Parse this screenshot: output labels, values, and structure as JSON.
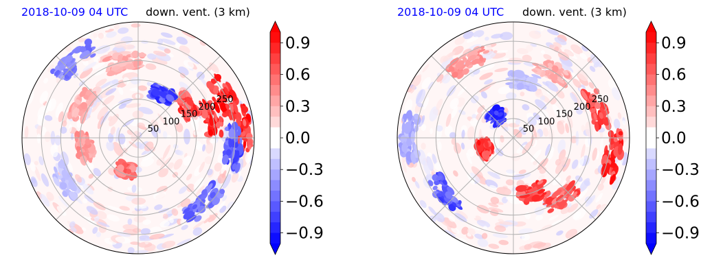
{
  "chart_data": [
    {
      "type": "heatmap",
      "projection": "polar",
      "title_left": "2018-10-09 04 UTC",
      "title_right": "down. vent. (3 km)",
      "radial_ticks": [
        "50",
        "100",
        "150",
        "200",
        "250"
      ],
      "radial_tick_values": [
        50,
        100,
        150,
        200,
        250
      ],
      "radial_max": 300,
      "angular_grid_step_deg": 45,
      "colorbar": {
        "ticks": [
          0.9,
          0.6,
          0.3,
          0.0,
          -0.3,
          -0.6,
          -0.9
        ],
        "tick_labels": [
          "0.9",
          "0.6",
          "0.3",
          "0.0",
          "−0.3",
          "−0.6",
          "−0.9"
        ],
        "range": [
          -1.0,
          1.0
        ],
        "extend": "both",
        "colormap": "bwr"
      },
      "features": [
        {
          "azimuth_deg": 65,
          "range": 250,
          "value": 1.0
        },
        {
          "azimuth_deg": 75,
          "range": 200,
          "value": 1.0
        },
        {
          "azimuth_deg": 55,
          "range": 150,
          "value": 0.9
        },
        {
          "azimuth_deg": 85,
          "range": 270,
          "value": 1.0
        },
        {
          "azimuth_deg": 95,
          "range": 250,
          "value": -0.8
        },
        {
          "azimuth_deg": 30,
          "range": 130,
          "value": -0.9
        },
        {
          "azimuth_deg": 320,
          "range": 260,
          "value": -0.6
        },
        {
          "azimuth_deg": 300,
          "range": 170,
          "value": 0.4
        },
        {
          "azimuth_deg": 260,
          "range": 140,
          "value": 0.5
        },
        {
          "azimuth_deg": 200,
          "range": 90,
          "value": 0.7
        },
        {
          "azimuth_deg": 135,
          "range": 240,
          "value": -0.7
        },
        {
          "azimuth_deg": 240,
          "range": 220,
          "value": -0.3
        },
        {
          "azimuth_deg": 350,
          "range": 200,
          "value": 0.4
        }
      ]
    },
    {
      "type": "heatmap",
      "projection": "polar",
      "title_left": "2018-10-09 04 UTC",
      "title_right": "down. vent. (3 km)",
      "radial_ticks": [
        "50",
        "100",
        "150",
        "200",
        "250"
      ],
      "radial_tick_values": [
        50,
        100,
        150,
        200,
        250
      ],
      "radial_max": 300,
      "angular_grid_step_deg": 45,
      "colorbar": {
        "ticks": [
          0.9,
          0.6,
          0.3,
          0.0,
          -0.3,
          -0.6,
          -0.9
        ],
        "tick_labels": [
          "0.9",
          "0.6",
          "0.3",
          "0.0",
          "−0.3",
          "−0.6",
          "−0.9"
        ],
        "range": [
          -1.0,
          1.0
        ],
        "extend": "both",
        "colormap": "bwr"
      },
      "features": [
        {
          "azimuth_deg": 250,
          "range": 80,
          "value": 1.0
        },
        {
          "azimuth_deg": 320,
          "range": 70,
          "value": -1.0
        },
        {
          "azimuth_deg": 100,
          "range": 260,
          "value": 1.0
        },
        {
          "azimuth_deg": 70,
          "range": 230,
          "value": 0.9
        },
        {
          "azimuth_deg": 140,
          "range": 200,
          "value": 0.8
        },
        {
          "azimuth_deg": 160,
          "range": 150,
          "value": 0.9
        },
        {
          "azimuth_deg": 30,
          "range": 200,
          "value": 0.4
        },
        {
          "azimuth_deg": 330,
          "range": 230,
          "value": 0.5
        },
        {
          "azimuth_deg": 230,
          "range": 230,
          "value": -0.8
        },
        {
          "azimuth_deg": 270,
          "range": 270,
          "value": -0.4
        },
        {
          "azimuth_deg": 10,
          "range": 150,
          "value": -0.3
        }
      ]
    }
  ]
}
